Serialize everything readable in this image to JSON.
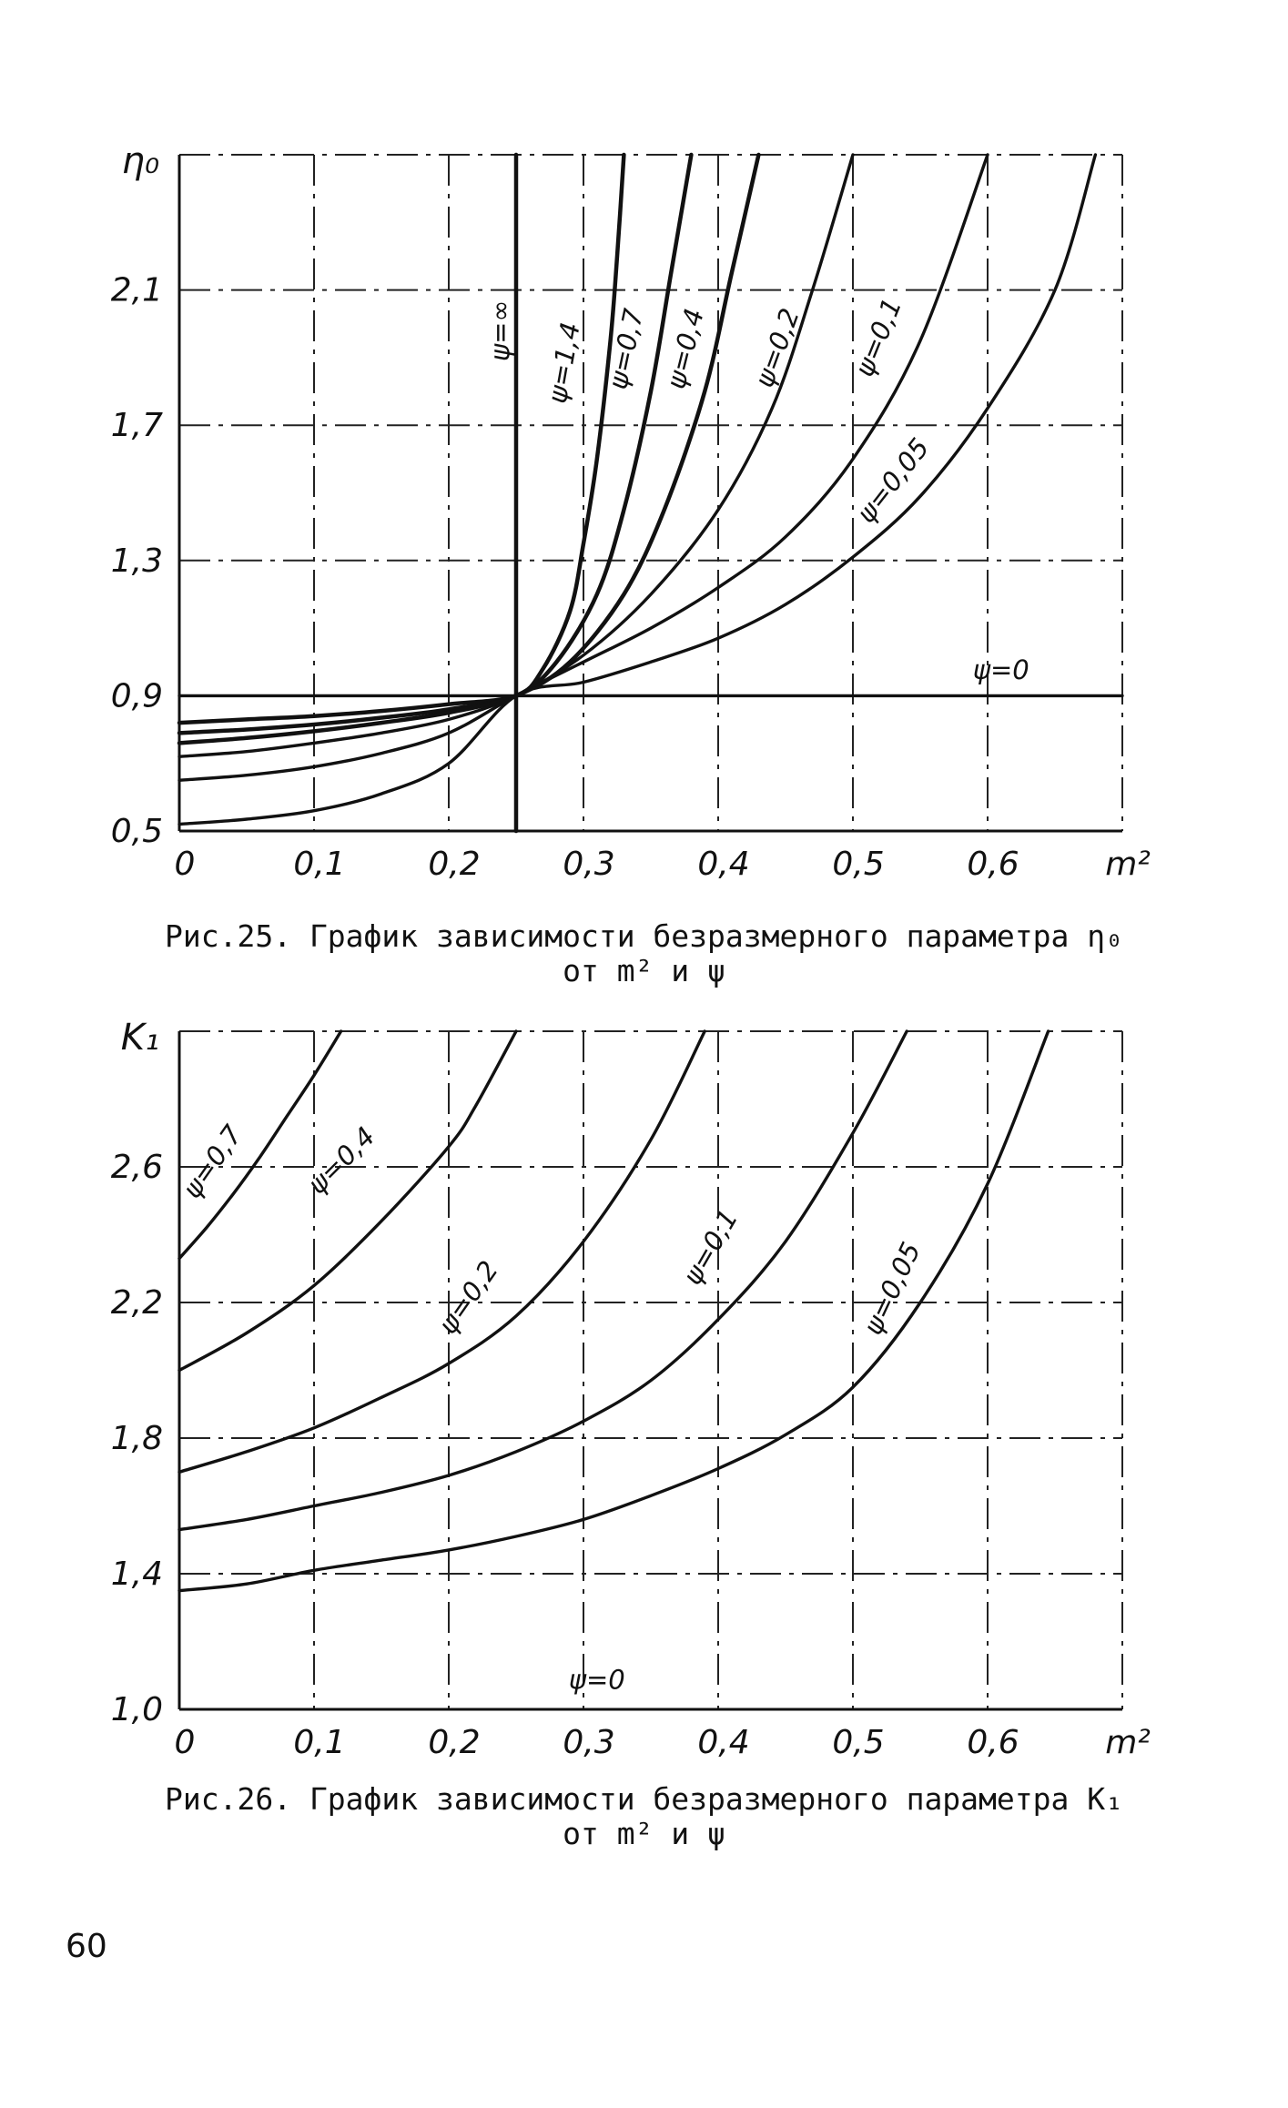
{
  "page_number": "60",
  "chart_data": [
    {
      "type": "line",
      "caption_line1": "Рис.25. График зависимости безразмерного параметра η₀",
      "caption_line2": "от m² и ψ",
      "ylabel": "η₀",
      "xlabel": "m²",
      "xlim": [
        0,
        0.7
      ],
      "ylim": [
        0.5,
        2.5
      ],
      "x_ticks": [
        "0",
        "0,1",
        "0,2",
        "0,3",
        "0,4",
        "0,5",
        "0,6"
      ],
      "y_ticks": [
        "0,5",
        "0,9",
        "1,3",
        "1,7",
        "2,1"
      ],
      "y_tick_values": [
        0.5,
        0.9,
        1.3,
        1.7,
        2.1
      ],
      "grid": true,
      "series": [
        {
          "name": "ψ=∞",
          "x": [
            0.25,
            0.25
          ],
          "y": [
            0.5,
            2.5
          ],
          "label_at": [
            0.245,
            1.98
          ],
          "rot": -90
        },
        {
          "name": "ψ=1,4",
          "x": [
            0,
            0.05,
            0.1,
            0.15,
            0.2,
            0.25,
            0.27,
            0.29,
            0.3,
            0.31,
            0.32,
            0.325,
            0.33
          ],
          "y": [
            0.82,
            0.83,
            0.84,
            0.855,
            0.875,
            0.9,
            0.98,
            1.15,
            1.35,
            1.6,
            1.95,
            2.2,
            2.5
          ],
          "label_at": [
            0.292,
            1.88
          ],
          "rot": -80
        },
        {
          "name": "ψ=0,7",
          "x": [
            0,
            0.05,
            0.1,
            0.15,
            0.2,
            0.25,
            0.28,
            0.31,
            0.33,
            0.35,
            0.365,
            0.38
          ],
          "y": [
            0.79,
            0.8,
            0.815,
            0.835,
            0.86,
            0.9,
            1.0,
            1.2,
            1.45,
            1.8,
            2.15,
            2.5
          ],
          "label_at": [
            0.338,
            1.92
          ],
          "rot": -78
        },
        {
          "name": "ψ=0,4",
          "x": [
            0,
            0.05,
            0.1,
            0.15,
            0.2,
            0.25,
            0.29,
            0.33,
            0.36,
            0.39,
            0.41,
            0.43
          ],
          "y": [
            0.76,
            0.775,
            0.795,
            0.82,
            0.85,
            0.9,
            1.0,
            1.2,
            1.45,
            1.8,
            2.15,
            2.5
          ],
          "label_at": [
            0.382,
            1.92
          ],
          "rot": -76
        },
        {
          "name": "ψ=0,2",
          "x": [
            0,
            0.05,
            0.1,
            0.15,
            0.2,
            0.25,
            0.3,
            0.35,
            0.4,
            0.44,
            0.47,
            0.5
          ],
          "y": [
            0.72,
            0.735,
            0.76,
            0.79,
            0.83,
            0.9,
            1.02,
            1.2,
            1.45,
            1.75,
            2.1,
            2.5
          ],
          "label_at": [
            0.45,
            1.92
          ],
          "rot": -70
        },
        {
          "name": "ψ=0,1",
          "x": [
            0,
            0.05,
            0.1,
            0.15,
            0.2,
            0.25,
            0.3,
            0.35,
            0.4,
            0.45,
            0.5,
            0.55,
            0.6
          ],
          "y": [
            0.65,
            0.665,
            0.69,
            0.73,
            0.79,
            0.9,
            1.0,
            1.1,
            1.22,
            1.37,
            1.6,
            1.95,
            2.5
          ],
          "label_at": [
            0.525,
            1.95
          ],
          "rot": -68
        },
        {
          "name": "ψ=0,05",
          "x": [
            0,
            0.05,
            0.1,
            0.15,
            0.2,
            0.25,
            0.3,
            0.35,
            0.4,
            0.45,
            0.5,
            0.55,
            0.6,
            0.65,
            0.68
          ],
          "y": [
            0.52,
            0.535,
            0.56,
            0.61,
            0.7,
            0.9,
            0.94,
            1.0,
            1.07,
            1.17,
            1.31,
            1.49,
            1.75,
            2.1,
            2.5
          ],
          "label_at": [
            0.535,
            1.52
          ],
          "rot": -52
        },
        {
          "name": "ψ=0",
          "x": [
            0,
            0.7
          ],
          "y": [
            0.9,
            0.9
          ],
          "label_at": [
            0.61,
            0.95
          ],
          "rot": 0
        }
      ]
    },
    {
      "type": "line",
      "caption_line1": "Рис.26. График зависимости безразмерного параметра K₁",
      "caption_line2": "от m² и ψ",
      "ylabel": "K₁",
      "xlabel": "m²",
      "xlim": [
        0,
        0.7
      ],
      "ylim": [
        1.0,
        3.0
      ],
      "x_ticks": [
        "0",
        "0,1",
        "0,2",
        "0,3",
        "0,4",
        "0,5",
        "0,6"
      ],
      "y_ticks": [
        "1,0",
        "1,4",
        "1,8",
        "2,2",
        "2,6"
      ],
      "y_tick_values": [
        1.0,
        1.4,
        1.8,
        2.2,
        2.6
      ],
      "grid": true,
      "series": [
        {
          "name": "ψ=0,7",
          "x": [
            0,
            0.02,
            0.04,
            0.06,
            0.08,
            0.1,
            0.12
          ],
          "y": [
            2.33,
            2.42,
            2.52,
            2.63,
            2.75,
            2.87,
            3.0
          ],
          "label_at": [
            0.03,
            2.6
          ],
          "rot": -55
        },
        {
          "name": "ψ=0,4",
          "x": [
            0,
            0.05,
            0.1,
            0.15,
            0.2,
            0.22,
            0.25
          ],
          "y": [
            2.0,
            2.11,
            2.25,
            2.44,
            2.66,
            2.78,
            3.0
          ],
          "label_at": [
            0.125,
            2.6
          ],
          "rot": -45
        },
        {
          "name": "ψ=0,2",
          "x": [
            0,
            0.05,
            0.1,
            0.15,
            0.2,
            0.25,
            0.3,
            0.35,
            0.39
          ],
          "y": [
            1.7,
            1.76,
            1.83,
            1.92,
            2.02,
            2.16,
            2.38,
            2.68,
            3.0
          ],
          "label_at": [
            0.22,
            2.2
          ],
          "rot": -55
        },
        {
          "name": "ψ=0,1",
          "x": [
            0,
            0.05,
            0.1,
            0.15,
            0.2,
            0.25,
            0.3,
            0.35,
            0.4,
            0.45,
            0.5,
            0.54
          ],
          "y": [
            1.53,
            1.56,
            1.6,
            1.64,
            1.69,
            1.76,
            1.85,
            1.97,
            2.15,
            2.38,
            2.7,
            3.0
          ],
          "label_at": [
            0.4,
            2.35
          ],
          "rot": -60
        },
        {
          "name": "ψ=0,05",
          "x": [
            0,
            0.05,
            0.1,
            0.15,
            0.2,
            0.25,
            0.3,
            0.35,
            0.4,
            0.45,
            0.5,
            0.55,
            0.6,
            0.645
          ],
          "y": [
            1.35,
            1.37,
            1.41,
            1.44,
            1.47,
            1.51,
            1.56,
            1.63,
            1.71,
            1.81,
            1.95,
            2.2,
            2.55,
            3.0
          ],
          "label_at": [
            0.535,
            2.23
          ],
          "rot": -65
        },
        {
          "name": "ψ=0",
          "x": [],
          "y": [],
          "label_at": [
            0.31,
            1.06
          ],
          "rot": 0
        }
      ]
    }
  ]
}
